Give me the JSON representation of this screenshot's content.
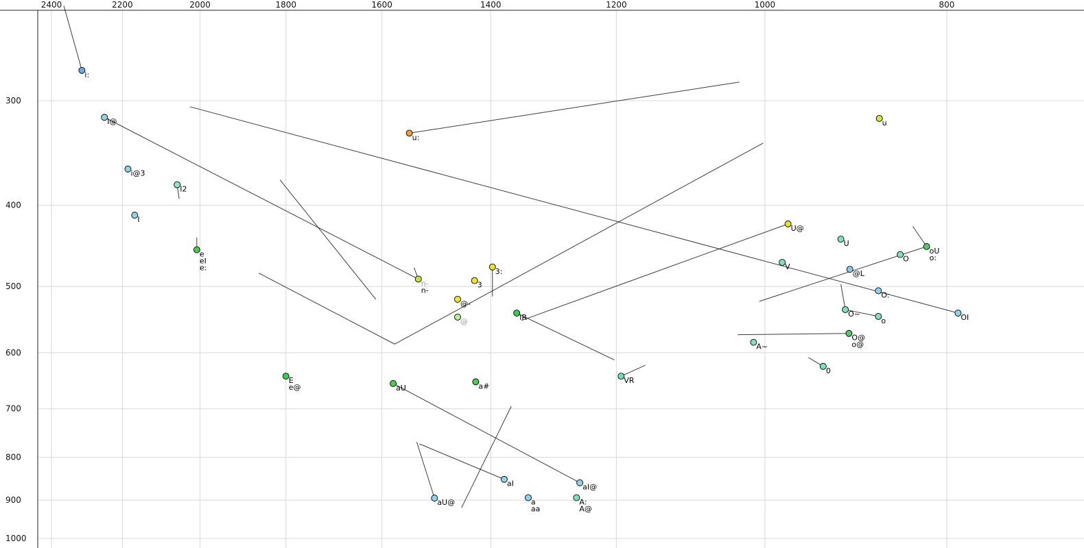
{
  "colors": {
    "background": "#ffffff",
    "grid": "#d8d8d8",
    "axis": "#222222",
    "tick_text": "#111111",
    "trajectory": "#1a1a1a",
    "point_stroke": "#000000",
    "label_text": "#000000",
    "muted_label": "#9aa0a6"
  },
  "chart_data": {
    "type": "scatter",
    "title": "",
    "xlabel": "",
    "ylabel": "",
    "x_axis": {
      "ticks": [
        2400,
        2200,
        2000,
        1800,
        1600,
        1400,
        1200,
        1000,
        800
      ],
      "scale": "log",
      "reversed": true,
      "range": [
        2440,
        676
      ]
    },
    "y_axis": {
      "ticks": [
        300,
        400,
        500,
        600,
        700,
        800,
        900,
        1000
      ],
      "scale": "log",
      "reversed": false,
      "range": [
        234,
        1027
      ]
    },
    "grid": true,
    "legend": "none",
    "points": [
      {
        "f2": 2312,
        "f1": 276,
        "color": "#6ea8e8",
        "labels": [
          {
            "text": "i:"
          }
        ]
      },
      {
        "f2": 2249,
        "f1": 314,
        "color": "#8fd4e8",
        "labels": [
          {
            "text": "I@"
          }
        ]
      },
      {
        "f2": 2185,
        "f1": 362,
        "color": "#8fd4e8",
        "labels": [
          {
            "text": "i@3"
          }
        ]
      },
      {
        "f2": 2057,
        "f1": 378,
        "color": "#8fe8c8",
        "labels": [
          {
            "text": "I2"
          }
        ]
      },
      {
        "f2": 2167,
        "f1": 411,
        "color": "#8fd4e8",
        "labels": [
          {
            "text": "I"
          }
        ]
      },
      {
        "f2": 2008,
        "f1": 452,
        "color": "#4ecb4e",
        "labels": [
          {
            "text": "e"
          },
          {
            "text": "eI"
          },
          {
            "text": "e:"
          }
        ]
      },
      {
        "f2": 1547,
        "f1": 328,
        "color": "#f09f2e",
        "labels": [
          {
            "text": "u:"
          }
        ]
      },
      {
        "f2": 1530,
        "f1": 490,
        "color": "#c0e33e",
        "labels": [
          {
            "text": "n-",
            "color": "#9aa0a6"
          },
          {
            "text": "n-"
          }
        ]
      },
      {
        "f2": 1428,
        "f1": 492,
        "color": "#efe32e",
        "labels": [
          {
            "text": "3"
          }
        ]
      },
      {
        "f2": 1397,
        "f1": 474,
        "color": "#efe32e",
        "labels": [
          {
            "text": "3:"
          }
        ]
      },
      {
        "f2": 1458,
        "f1": 518,
        "color": "#efe32e",
        "labels": [
          {
            "text": "@-"
          }
        ]
      },
      {
        "f2": 1458,
        "f1": 544,
        "color": "#b5ef8f",
        "labels": [
          {
            "text": "@",
            "color": "#9aa0a6"
          }
        ]
      },
      {
        "f2": 1356,
        "f1": 538,
        "color": "#3ecb57",
        "labels": [
          {
            "text": "IR"
          }
        ]
      },
      {
        "f2": 1426,
        "f1": 650,
        "color": "#4ecb4e",
        "labels": [
          {
            "text": "a#"
          }
        ]
      },
      {
        "f2": 1578,
        "f1": 653,
        "color": "#4ecb4e",
        "labels": [
          {
            "text": "aU"
          }
        ]
      },
      {
        "f2": 1800,
        "f1": 640,
        "color": "#3ecb57",
        "labels": [
          {
            "text": "E"
          },
          {
            "text": "e@"
          }
        ]
      },
      {
        "f2": 1193,
        "f1": 640,
        "color": "#6fdfb8",
        "labels": [
          {
            "text": "VR"
          }
        ]
      },
      {
        "f2": 869,
        "f1": 315,
        "color": "#d9e833",
        "labels": [
          {
            "text": "u"
          }
        ]
      },
      {
        "f2": 972,
        "f1": 421,
        "color": "#e8df2a",
        "labels": [
          {
            "text": "U@"
          }
        ]
      },
      {
        "f2": 911,
        "f1": 439,
        "color": "#7fe0c0",
        "labels": [
          {
            "text": "U"
          }
        ]
      },
      {
        "f2": 979,
        "f1": 468,
        "color": "#7fe0c0",
        "labels": [
          {
            "text": "V"
          }
        ]
      },
      {
        "f2": 901,
        "f1": 477,
        "color": "#8fc9e8",
        "labels": [
          {
            "text": "@L"
          }
        ]
      },
      {
        "f2": 847,
        "f1": 458,
        "color": "#7fe0c0",
        "labels": [
          {
            "text": "O"
          }
        ]
      },
      {
        "f2": 820,
        "f1": 448,
        "color": "#4ecb6e",
        "labels": [
          {
            "text": "oU"
          },
          {
            "text": "o:"
          }
        ]
      },
      {
        "f2": 870,
        "f1": 506,
        "color": "#8fd4e8",
        "labels": [
          {
            "text": "O:"
          }
        ]
      },
      {
        "f2": 906,
        "f1": 533,
        "color": "#7fe0c0",
        "labels": [
          {
            "text": "O~"
          }
        ]
      },
      {
        "f2": 870,
        "f1": 543,
        "color": "#7fe0c0",
        "labels": [
          {
            "text": "o"
          }
        ]
      },
      {
        "f2": 789,
        "f1": 538,
        "color": "#8fd4e8",
        "labels": [
          {
            "text": "OI"
          }
        ]
      },
      {
        "f2": 902,
        "f1": 569,
        "color": "#4ecb6e",
        "labels": [
          {
            "text": "O@"
          },
          {
            "text": "o@"
          }
        ]
      },
      {
        "f2": 1014,
        "f1": 583,
        "color": "#7fe0c0",
        "labels": [
          {
            "text": "A~"
          }
        ]
      },
      {
        "f2": 931,
        "f1": 623,
        "color": "#7fe0c0",
        "labels": [
          {
            "text": "0"
          }
        ]
      },
      {
        "f2": 1377,
        "f1": 850,
        "color": "#8fd4e8",
        "labels": [
          {
            "text": "aI"
          }
        ]
      },
      {
        "f2": 1255,
        "f1": 858,
        "color": "#8fd4e8",
        "labels": [
          {
            "text": "aI@"
          }
        ]
      },
      {
        "f2": 1500,
        "f1": 895,
        "color": "#8fd4e8",
        "labels": [
          {
            "text": "aU@"
          }
        ]
      },
      {
        "f2": 1337,
        "f1": 894,
        "color": "#8fd4e8",
        "labels": [
          {
            "text": "a"
          },
          {
            "text": "aa"
          }
        ]
      },
      {
        "f2": 1260,
        "f1": 894,
        "color": "#7fe0c0",
        "labels": [
          {
            "text": "A:"
          },
          {
            "text": "A@"
          }
        ]
      }
    ],
    "lines": [
      {
        "from": [
          2364,
          231
        ],
        "to": [
          2312,
          276
        ]
      },
      {
        "from": [
          2249,
          314
        ],
        "to": [
          1530,
          490
        ]
      },
      {
        "from": [
          2025,
          305
        ],
        "to": [
          789,
          538
        ]
      },
      {
        "from": [
          1547,
          328
        ],
        "to": [
          1032,
          285
        ]
      },
      {
        "from": [
          1813,
          373
        ],
        "to": [
          1612,
          518
        ]
      },
      {
        "from": [
          1861,
          482
        ],
        "to": [
          1575,
          586
        ]
      },
      {
        "from": [
          1575,
          586
        ],
        "to": [
          1002,
          337
        ]
      },
      {
        "from": [
          972,
          421
        ],
        "to": [
          1348,
          549
        ]
      },
      {
        "from": [
          1356,
          538
        ],
        "to": [
          1203,
          612
        ]
      },
      {
        "from": [
          1193,
          640
        ],
        "to": [
          1158,
          621
        ]
      },
      {
        "from": [
          1365,
          695
        ],
        "to": [
          1451,
          919
        ]
      },
      {
        "from": [
          1578,
          653
        ],
        "to": [
          1255,
          858
        ]
      },
      {
        "from": [
          906,
          533
        ],
        "to": [
          911,
          497
        ]
      },
      {
        "from": [
          906,
          533
        ],
        "to": [
          870,
          543
        ]
      },
      {
        "from": [
          902,
          569
        ],
        "to": [
          1034,
          571
        ]
      },
      {
        "from": [
          931,
          623
        ],
        "to": [
          948,
          608
        ]
      },
      {
        "from": [
          820,
          448
        ],
        "to": [
          834,
          424
        ]
      },
      {
        "from": [
          1007,
          521
        ],
        "to": [
          820,
          448
        ]
      },
      {
        "from": [
          1397,
          474
        ],
        "to": [
          1397,
          514
        ]
      },
      {
        "from": [
          2057,
          378
        ],
        "to": [
          2052,
          393
        ]
      },
      {
        "from": [
          2008,
          437
        ],
        "to": [
          2008,
          451
        ]
      },
      {
        "from": [
          1538,
          475
        ],
        "to": [
          1530,
          490
        ]
      },
      {
        "from": [
          1500,
          895
        ],
        "to": [
          1533,
          767
        ]
      },
      {
        "from": [
          1377,
          850
        ],
        "to": [
          1528,
          771
        ]
      }
    ]
  }
}
